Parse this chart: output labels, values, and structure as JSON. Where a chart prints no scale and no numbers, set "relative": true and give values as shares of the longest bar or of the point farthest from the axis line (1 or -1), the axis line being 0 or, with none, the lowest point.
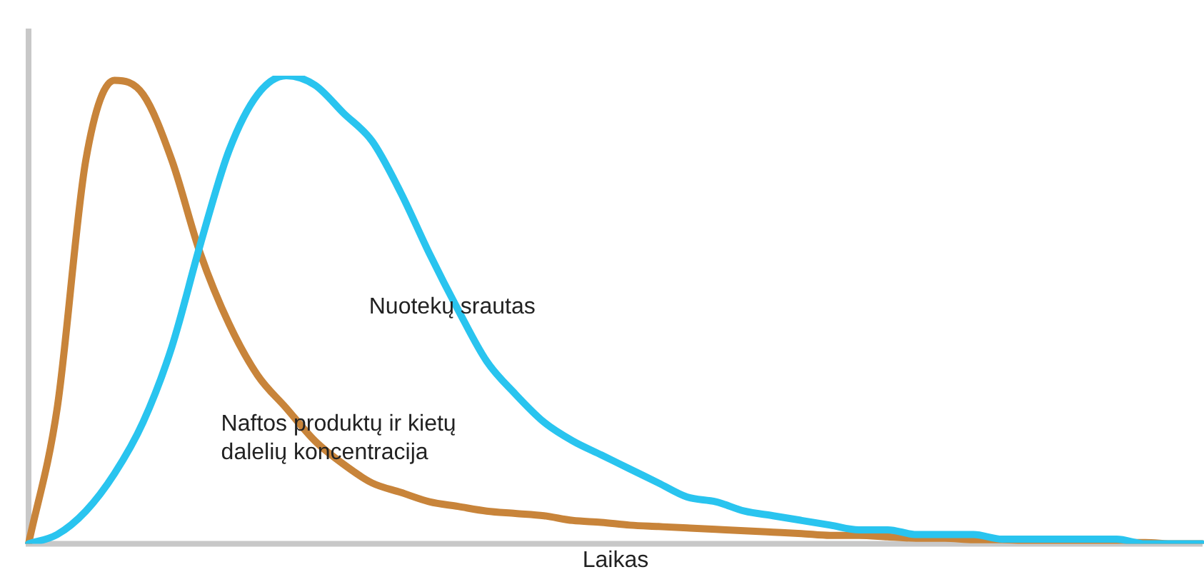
{
  "chart_data": {
    "type": "line",
    "relative": true,
    "xlabel": "Laikas",
    "grid": false,
    "legend": false,
    "marker": "none",
    "tick_labels": false,
    "categories": [
      null,
      null,
      null,
      null,
      null,
      null,
      null,
      null,
      null,
      null,
      null,
      null,
      null,
      null,
      null,
      null,
      null,
      null,
      null,
      null,
      null,
      null,
      null,
      null,
      null,
      null,
      null,
      null,
      null,
      null,
      null,
      null,
      null,
      null,
      null,
      null,
      null,
      null,
      null,
      null,
      null,
      null
    ],
    "series": [
      {
        "name": "Nuotekų srautas",
        "color": "#29c4ef",
        "values": [
          0,
          0.02,
          0.07,
          0.15,
          0.26,
          0.42,
          0.64,
          0.84,
          0.96,
          1,
          0.98,
          0.92,
          0.86,
          0.75,
          0.62,
          0.5,
          0.39,
          0.32,
          0.26,
          0.22,
          0.19,
          0.16,
          0.13,
          0.1,
          0.09,
          0.07,
          0.06,
          0.05,
          0.04,
          0.03,
          0.03,
          0.02,
          0.02,
          0.02,
          0.01,
          0.01,
          0.01,
          0.01,
          0.01,
          0,
          0,
          0
        ]
      },
      {
        "name": "Naftos produktų ir kietų dalelių koncentracija",
        "color": "#c8843a",
        "values": [
          0,
          0.29,
          0.82,
          0.99,
          0.96,
          0.82,
          0.62,
          0.47,
          0.36,
          0.29,
          0.22,
          0.17,
          0.13,
          0.11,
          0.09,
          0.08,
          0.07,
          0.065,
          0.06,
          0.05,
          0.046,
          0.04,
          0.037,
          0.034,
          0.031,
          0.028,
          0.025,
          0.022,
          0.018,
          0.018,
          0.015,
          0.012,
          0.012,
          0.009,
          0.009,
          0.006,
          0.006,
          0.003,
          0.003,
          0.003,
          0,
          0
        ]
      }
    ]
  }
}
